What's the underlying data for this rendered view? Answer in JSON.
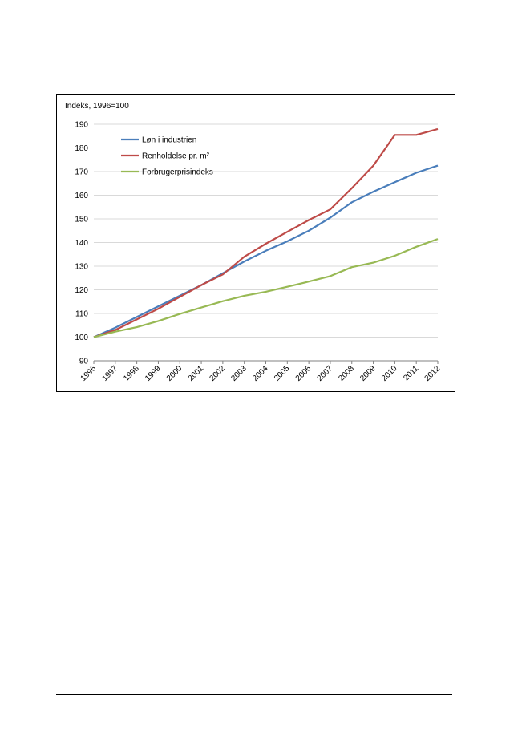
{
  "chart_data": {
    "type": "line",
    "ylabel": "Indeks, 1996=100",
    "x": [
      "1996",
      "1997",
      "1998",
      "1999",
      "2000",
      "2001",
      "2002",
      "2003",
      "2004",
      "2005",
      "2006",
      "2007",
      "2008",
      "2009",
      "2010",
      "2011",
      "2012"
    ],
    "ylim": [
      90,
      190
    ],
    "yticks": [
      90,
      100,
      110,
      120,
      130,
      140,
      150,
      160,
      170,
      180,
      190
    ],
    "grid": true,
    "legend_position": "top-left",
    "series": [
      {
        "name": "Løn i industrien",
        "color": "#4a7ebb",
        "values": [
          100,
          104,
          108.5,
          113,
          117.5,
          122,
          127,
          132,
          136.5,
          140.5,
          145,
          150.5,
          157,
          161.5,
          165.5,
          169.5,
          172.5
        ]
      },
      {
        "name": "Renholdelse pr. m²",
        "color": "#be4b48",
        "values": [
          100,
          103,
          107.5,
          112,
          117,
          122,
          126.5,
          134,
          139.5,
          144.5,
          149.5,
          154,
          163,
          172.5,
          185.5,
          185.5,
          188
        ]
      },
      {
        "name": "Forbrugerprisindeks",
        "color": "#98b954",
        "values": [
          100,
          102.3,
          104.2,
          106.8,
          109.8,
          112.5,
          115.2,
          117.5,
          119.2,
          121.3,
          123.5,
          125.8,
          129.6,
          131.5,
          134.4,
          138.2,
          141.5
        ]
      }
    ]
  }
}
